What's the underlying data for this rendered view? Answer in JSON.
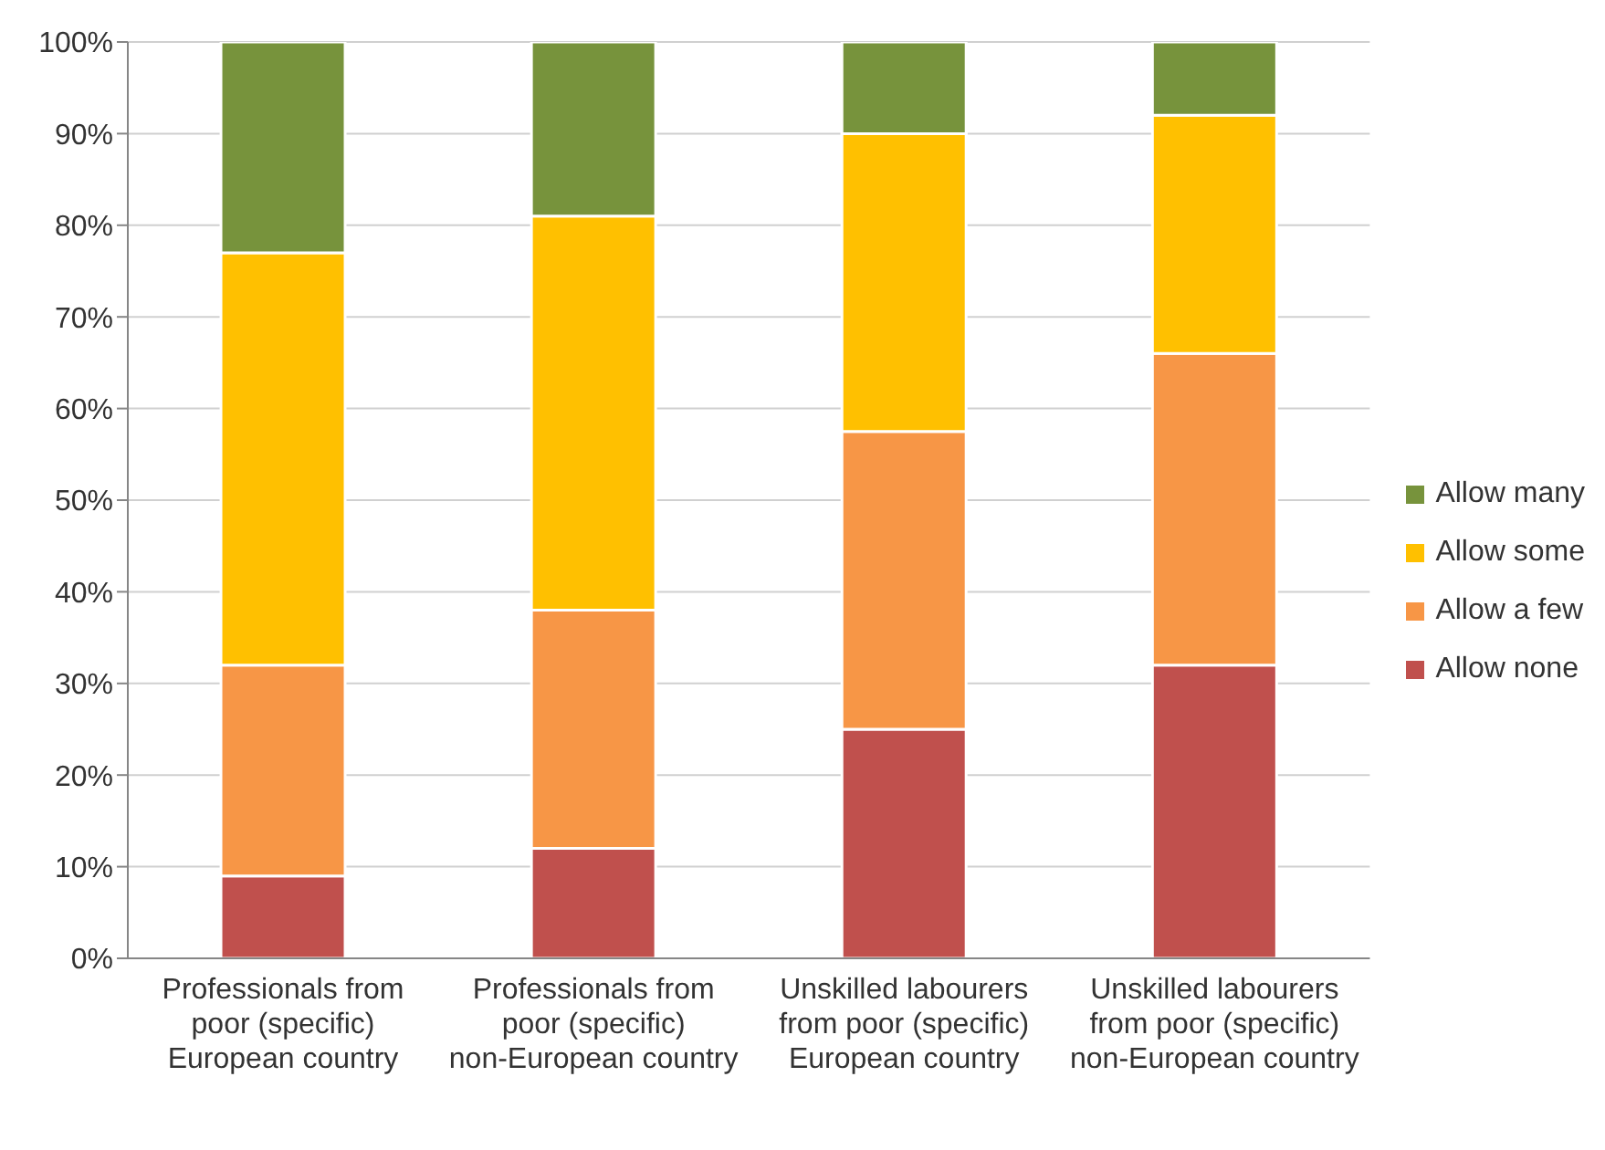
{
  "chart_data": {
    "type": "bar",
    "stacked": true,
    "categories": [
      "Professionals from poor (specific) European country",
      "Professionals from poor (specific) non-European country",
      "Unskilled labourers from poor (specific) European country",
      "Unskilled labourers from poor (specific) non-European country"
    ],
    "series": [
      {
        "name": "Allow none",
        "color": "#c0504d",
        "values": [
          9,
          12,
          25,
          32
        ]
      },
      {
        "name": "Allow a few",
        "color": "#f79646",
        "values": [
          23,
          26,
          32.5,
          34
        ]
      },
      {
        "name": "Allow some",
        "color": "#ffc000",
        "values": [
          45,
          43,
          32.5,
          26
        ]
      },
      {
        "name": "Allow many",
        "color": "#77933c",
        "values": [
          23,
          19,
          10,
          8
        ]
      }
    ],
    "ylim": [
      0,
      100
    ],
    "yticks": [
      {
        "value": 0,
        "label": "0%"
      },
      {
        "value": 10,
        "label": "10%"
      },
      {
        "value": 20,
        "label": "20%"
      },
      {
        "value": 30,
        "label": "30%"
      },
      {
        "value": 40,
        "label": "40%"
      },
      {
        "value": 50,
        "label": "50%"
      },
      {
        "value": 60,
        "label": "60%"
      },
      {
        "value": 70,
        "label": "70%"
      },
      {
        "value": 80,
        "label": "80%"
      },
      {
        "value": 90,
        "label": "90%"
      },
      {
        "value": 100,
        "label": "100%"
      }
    ],
    "grid": "y",
    "legend": "right"
  }
}
